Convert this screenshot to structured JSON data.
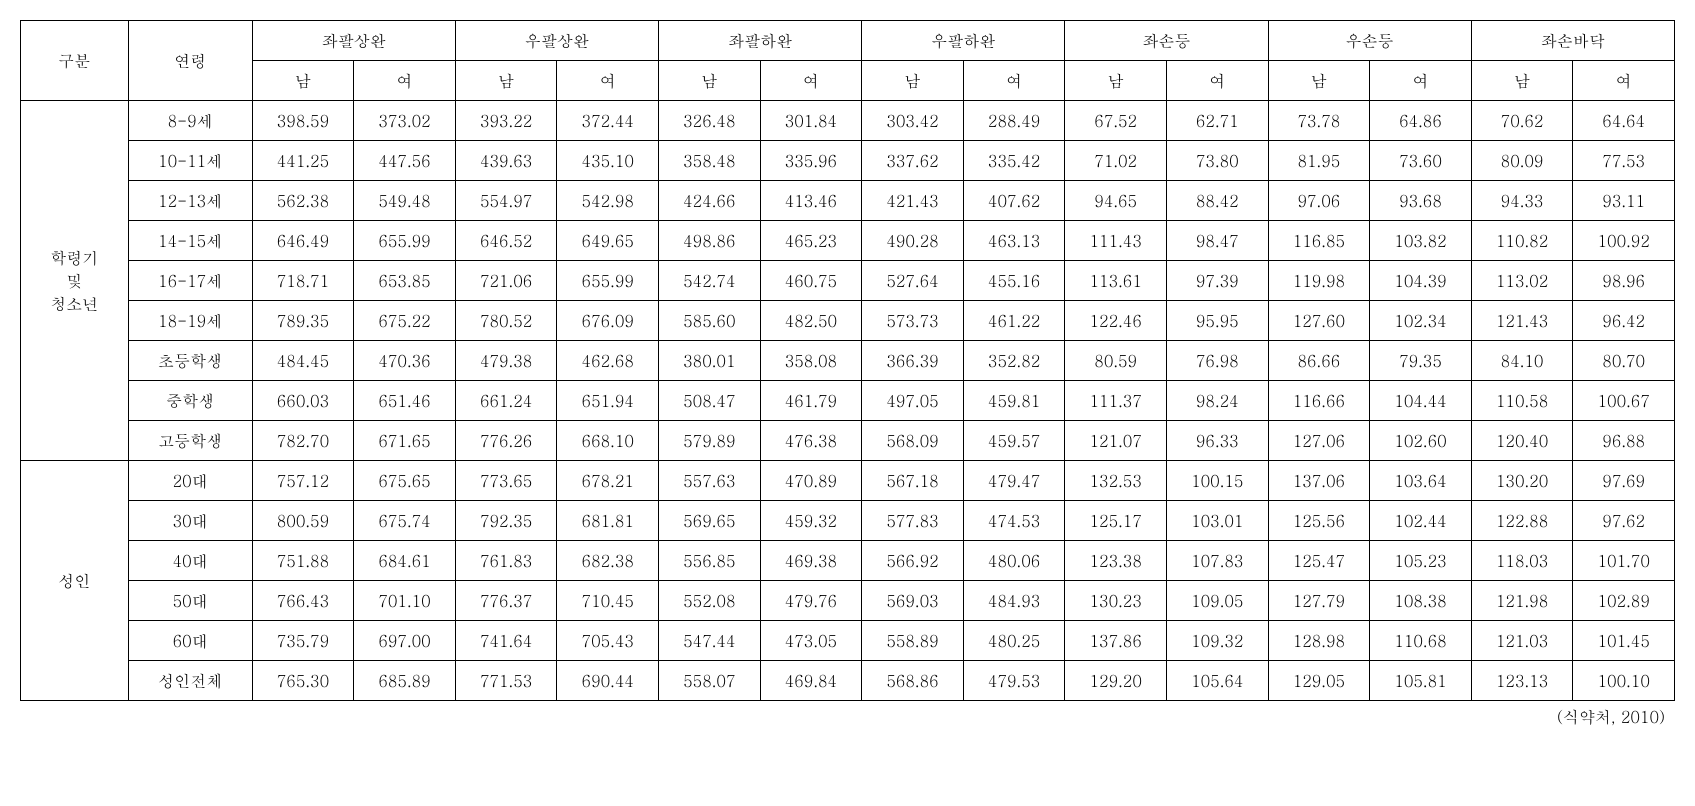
{
  "table": {
    "type": "table",
    "background_color": "#ffffff",
    "border_color": "#000000",
    "font_family": "Batang",
    "font_size": 16,
    "header_row1": {
      "category": "구분",
      "age": "연령",
      "groups": [
        "좌팔상완",
        "우팔상완",
        "좌팔하완",
        "우팔하완",
        "좌손등",
        "우손등",
        "좌손바닥"
      ]
    },
    "header_row2": {
      "male": "남",
      "female": "여"
    },
    "category_groups": [
      {
        "label": "학령기\n및\n청소년",
        "rows": [
          {
            "age": "8-9세",
            "values": [
              "398.59",
              "373.02",
              "393.22",
              "372.44",
              "326.48",
              "301.84",
              "303.42",
              "288.49",
              "67.52",
              "62.71",
              "73.78",
              "64.86",
              "70.62",
              "64.64"
            ]
          },
          {
            "age": "10-11세",
            "values": [
              "441.25",
              "447.56",
              "439.63",
              "435.10",
              "358.48",
              "335.96",
              "337.62",
              "335.42",
              "71.02",
              "73.80",
              "81.95",
              "73.60",
              "80.09",
              "77.53"
            ]
          },
          {
            "age": "12-13세",
            "values": [
              "562.38",
              "549.48",
              "554.97",
              "542.98",
              "424.66",
              "413.46",
              "421.43",
              "407.62",
              "94.65",
              "88.42",
              "97.06",
              "93.68",
              "94.33",
              "93.11"
            ]
          },
          {
            "age": "14-15세",
            "values": [
              "646.49",
              "655.99",
              "646.52",
              "649.65",
              "498.86",
              "465.23",
              "490.28",
              "463.13",
              "111.43",
              "98.47",
              "116.85",
              "103.82",
              "110.82",
              "100.92"
            ]
          },
          {
            "age": "16-17세",
            "values": [
              "718.71",
              "653.85",
              "721.06",
              "655.99",
              "542.74",
              "460.75",
              "527.64",
              "455.16",
              "113.61",
              "97.39",
              "119.98",
              "104.39",
              "113.02",
              "98.96"
            ]
          },
          {
            "age": "18-19세",
            "values": [
              "789.35",
              "675.22",
              "780.52",
              "676.09",
              "585.60",
              "482.50",
              "573.73",
              "461.22",
              "122.46",
              "95.95",
              "127.60",
              "102.34",
              "121.43",
              "96.42"
            ]
          },
          {
            "age": "초등학생",
            "values": [
              "484.45",
              "470.36",
              "479.38",
              "462.68",
              "380.01",
              "358.08",
              "366.39",
              "352.82",
              "80.59",
              "76.98",
              "86.66",
              "79.35",
              "84.10",
              "80.70"
            ]
          },
          {
            "age": "중학생",
            "values": [
              "660.03",
              "651.46",
              "661.24",
              "651.94",
              "508.47",
              "461.79",
              "497.05",
              "459.81",
              "111.37",
              "98.24",
              "116.66",
              "104.44",
              "110.58",
              "100.67"
            ]
          },
          {
            "age": "고등학생",
            "values": [
              "782.70",
              "671.65",
              "776.26",
              "668.10",
              "579.89",
              "476.38",
              "568.09",
              "459.57",
              "121.07",
              "96.33",
              "127.06",
              "102.60",
              "120.40",
              "96.88"
            ]
          }
        ]
      },
      {
        "label": "성인",
        "rows": [
          {
            "age": "20대",
            "values": [
              "757.12",
              "675.65",
              "773.65",
              "678.21",
              "557.63",
              "470.89",
              "567.18",
              "479.47",
              "132.53",
              "100.15",
              "137.06",
              "103.64",
              "130.20",
              "97.69"
            ]
          },
          {
            "age": "30대",
            "values": [
              "800.59",
              "675.74",
              "792.35",
              "681.81",
              "569.65",
              "459.32",
              "577.83",
              "474.53",
              "125.17",
              "103.01",
              "125.56",
              "102.44",
              "122.88",
              "97.62"
            ]
          },
          {
            "age": "40대",
            "values": [
              "751.88",
              "684.61",
              "761.83",
              "682.38",
              "556.85",
              "469.38",
              "566.92",
              "480.06",
              "123.38",
              "107.83",
              "125.47",
              "105.23",
              "118.03",
              "101.70"
            ]
          },
          {
            "age": "50대",
            "values": [
              "766.43",
              "701.10",
              "776.37",
              "710.45",
              "552.08",
              "479.76",
              "569.03",
              "484.93",
              "130.23",
              "109.05",
              "127.79",
              "108.38",
              "121.98",
              "102.89"
            ]
          },
          {
            "age": "60대",
            "values": [
              "735.79",
              "697.00",
              "741.64",
              "705.43",
              "547.44",
              "473.05",
              "558.89",
              "480.25",
              "137.86",
              "109.32",
              "128.98",
              "110.68",
              "121.03",
              "101.45"
            ]
          },
          {
            "age": "성인전체",
            "values": [
              "765.30",
              "685.89",
              "771.53",
              "690.44",
              "558.07",
              "469.84",
              "568.86",
              "479.53",
              "129.20",
              "105.64",
              "129.05",
              "105.81",
              "123.13",
              "100.10"
            ]
          }
        ]
      }
    ],
    "source_note": "(식약처, 2010)"
  }
}
